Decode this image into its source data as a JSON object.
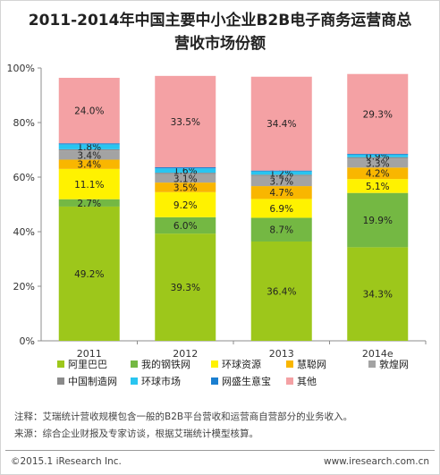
{
  "title_line1": "2011-2014年中国主要中小企业B2B电子商务运营商总",
  "title_line2": "营收市场份额",
  "chart_data": {
    "type": "bar",
    "stacked": true,
    "categories": [
      "2011",
      "2012",
      "2013",
      "2014e"
    ],
    "yticks": [
      "0%",
      "20%",
      "40%",
      "60%",
      "80%",
      "100%"
    ],
    "ylim": [
      0,
      100
    ],
    "grid": false,
    "legend_position": "bottom",
    "series": [
      {
        "name": "阿里巴巴",
        "color": "#9dc71b",
        "values": [
          49.2,
          39.3,
          36.4,
          34.3
        ]
      },
      {
        "name": "我的钢铁网",
        "color": "#74b843",
        "values": [
          2.7,
          6.0,
          8.7,
          19.9
        ]
      },
      {
        "name": "环球资源",
        "color": "#fff200",
        "values": [
          11.1,
          9.2,
          6.9,
          5.1
        ]
      },
      {
        "name": "慧聪网",
        "color": "#f9b600",
        "values": [
          3.4,
          3.5,
          4.7,
          4.2
        ]
      },
      {
        "name": "敦煌网",
        "color": "#a3a3a3",
        "values": [
          3.4,
          3.1,
          3.7,
          3.3
        ]
      },
      {
        "name": "中国制造网",
        "color": "#8a8a8a",
        "values": [
          0.4,
          0.5,
          0.5,
          0.5
        ]
      },
      {
        "name": "环球市场",
        "color": "#29c5f0",
        "values": [
          1.8,
          1.6,
          1.2,
          0.9
        ]
      },
      {
        "name": "网盛生意宝",
        "color": "#1a7fd0",
        "values": [
          0.4,
          0.4,
          0.3,
          0.3
        ]
      },
      {
        "name": "其他",
        "color": "#f4a1a4",
        "values": [
          24.0,
          33.5,
          34.4,
          29.3
        ]
      }
    ],
    "labels": [
      [
        "49.2%",
        "2.7%",
        "11.1%",
        "3.4%",
        "3.4%",
        null,
        "1.8%",
        null,
        "24.0%"
      ],
      [
        "39.3%",
        "6.0%",
        "9.2%",
        "3.5%",
        "3.1%",
        null,
        "1.6%",
        null,
        "33.5%"
      ],
      [
        "36.4%",
        "8.7%",
        "6.9%",
        "4.7%",
        "3.7%",
        null,
        "1.2%",
        null,
        "34.4%"
      ],
      [
        "34.3%",
        "19.9%",
        "5.1%",
        "4.2%",
        "3.3%",
        null,
        "0.9%",
        null,
        "29.3%"
      ]
    ]
  },
  "footnote": "注释：艾瑞统计营收规模包含一般的B2B平台营收和运营商自营部分的业务收入。",
  "source": "来源：综合企业财报及专家访谈，根据艾瑞统计模型核算。",
  "copyright": "©2015.1 iResearch Inc.",
  "website": "www.iresearch.com.cn"
}
